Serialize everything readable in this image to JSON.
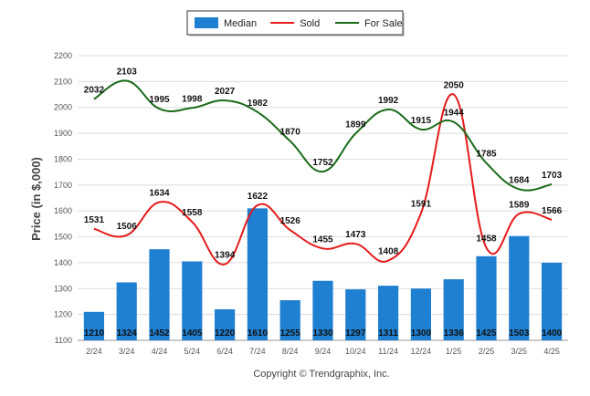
{
  "chart_data": {
    "type": "bar",
    "categories": [
      "2/24",
      "3/24",
      "4/24",
      "5/24",
      "6/24",
      "7/24",
      "8/24",
      "9/24",
      "10/24",
      "11/24",
      "12/24",
      "1/25",
      "2/25",
      "3/25",
      "4/25"
    ],
    "ylabel": "Price (in $,000)",
    "ylim": [
      1100,
      2200
    ],
    "yticks": [
      1100,
      1200,
      1300,
      1400,
      1500,
      1600,
      1700,
      1800,
      1900,
      2000,
      2100,
      2200
    ],
    "grid": true,
    "legend_position": "top-center",
    "series": [
      {
        "name": "Median",
        "kind": "bar",
        "color": "#1f7fd1",
        "values": [
          1210,
          1324,
          1452,
          1405,
          1220,
          1610,
          1255,
          1330,
          1297,
          1311,
          1300,
          1336,
          1425,
          1503,
          1400
        ]
      },
      {
        "name": "Sold",
        "kind": "line",
        "color": "#e31b1b",
        "values": [
          1531,
          1506,
          1634,
          1558,
          1394,
          1622,
          1526,
          1455,
          1473,
          1408,
          1591,
          2050,
          1458,
          1589,
          1566
        ]
      },
      {
        "name": "For Sale",
        "kind": "line",
        "color": "#1a6b1a",
        "values": [
          2032,
          2103,
          1995,
          1998,
          2027,
          1982,
          1870,
          1752,
          1899,
          1992,
          1915,
          1944,
          1785,
          1684,
          1703
        ]
      }
    ],
    "footer": "Copyright © Trendgraphix, Inc."
  }
}
